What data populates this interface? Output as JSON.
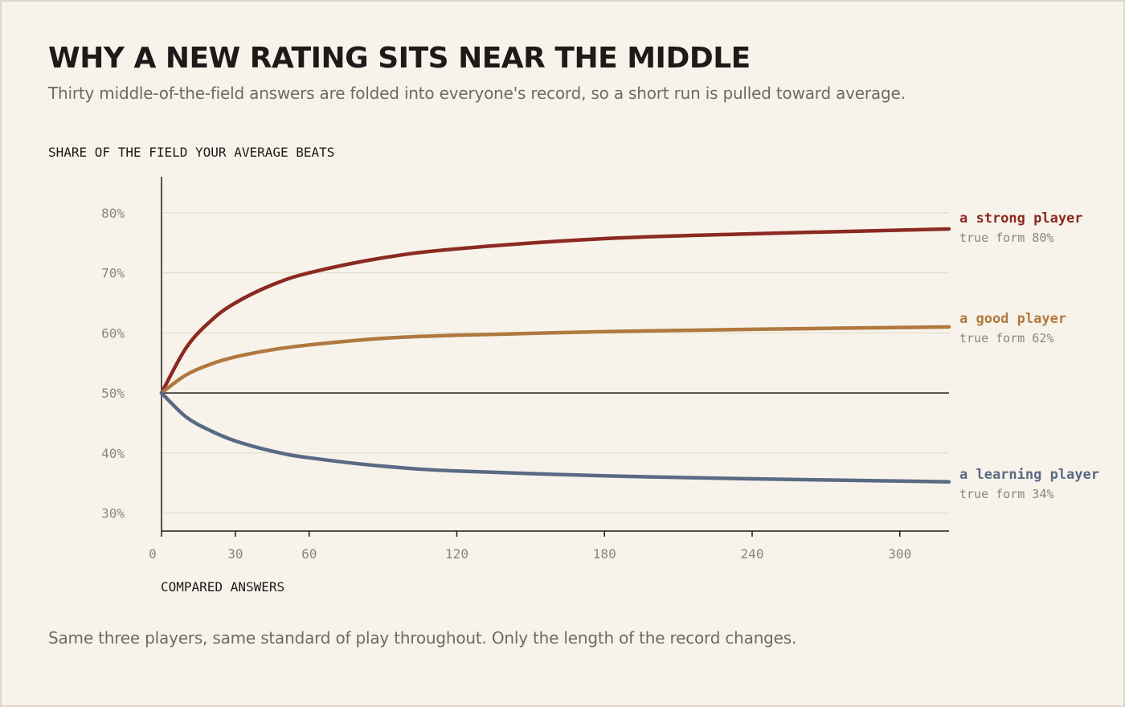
{
  "header": {
    "title": "WHY A NEW RATING SITS NEAR THE MIDDLE",
    "subtitle": "Thirty middle-of-the-field answers are folded into everyone's record, so a short run is pulled toward average."
  },
  "footer": {
    "note": "Same three players, same standard of play throughout. Only the length of the record changes."
  },
  "chart_data": {
    "type": "line",
    "xlabel": "COMPARED ANSWERS",
    "ylabel": "SHARE OF THE FIELD YOUR AVERAGE BEATS",
    "xlim": [
      0,
      320
    ],
    "ylim": [
      27,
      86
    ],
    "x_ticks": [
      0,
      30,
      60,
      120,
      180,
      240,
      300
    ],
    "x_tick_labels": [
      "0",
      "30",
      "60",
      "120",
      "180",
      "240",
      "300"
    ],
    "y_ticks": [
      30,
      40,
      50,
      60,
      70,
      80
    ],
    "y_tick_labels": [
      "30%",
      "40%",
      "50%",
      "60%",
      "70%",
      "80%"
    ],
    "grid": "horizontal",
    "baseline": 50,
    "legend": "direct labels at right end of lines",
    "series": [
      {
        "name": "a strong player",
        "detail": "true form 80%",
        "color": "#8b2a22",
        "x": [
          0,
          10,
          20,
          30,
          45,
          60,
          90,
          120,
          180,
          240,
          320
        ],
        "y": [
          50,
          57.5,
          62,
          65,
          68,
          70,
          72.5,
          74,
          75.7,
          76.5,
          77.3
        ]
      },
      {
        "name": "a good player",
        "detail": "true form 62%",
        "color": "#b07840",
        "x": [
          0,
          10,
          20,
          30,
          45,
          60,
          90,
          120,
          180,
          240,
          320
        ],
        "y": [
          50,
          53.0,
          54.8,
          56.0,
          57.2,
          58.0,
          59.1,
          59.6,
          60.2,
          60.6,
          61.0
        ]
      },
      {
        "name": "a learning player",
        "detail": "true form 34%",
        "color": "#5a6a84",
        "x": [
          0,
          10,
          20,
          30,
          45,
          60,
          90,
          120,
          180,
          240,
          320
        ],
        "y": [
          50,
          46.0,
          43.7,
          42.0,
          40.3,
          39.2,
          37.8,
          37.0,
          36.2,
          35.7,
          35.2
        ]
      }
    ]
  }
}
